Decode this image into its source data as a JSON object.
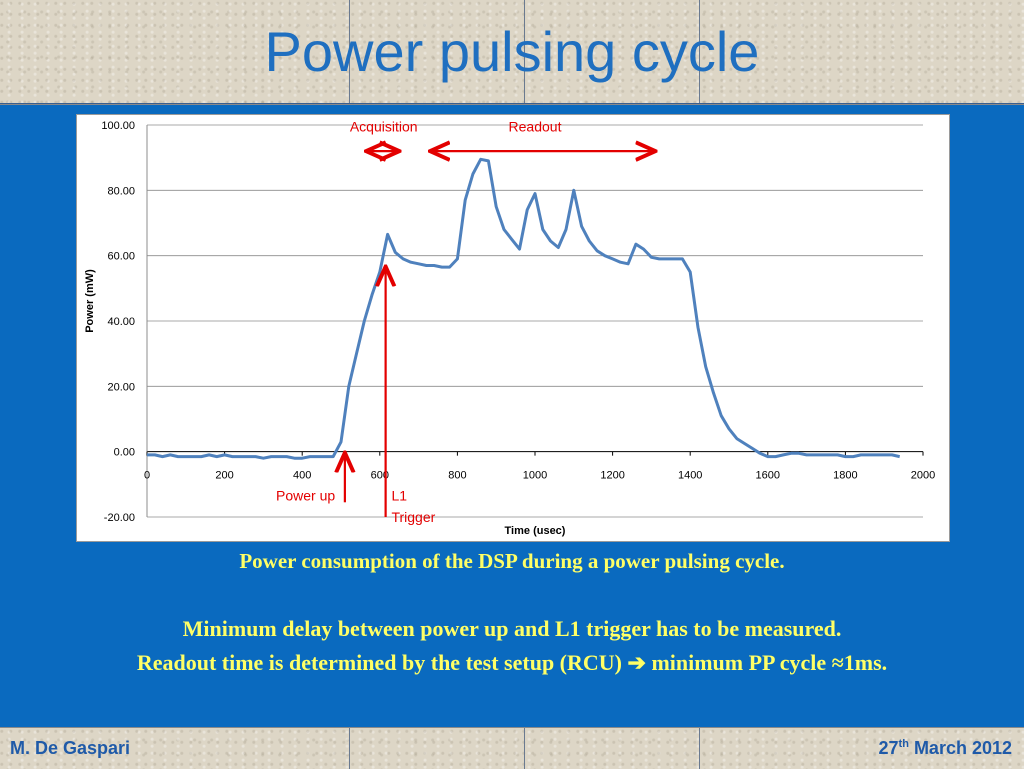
{
  "slide": {
    "title": "Power pulsing cycle",
    "author": "M. De Gaspari",
    "date_day": "27",
    "date_suffix": "th",
    "date_rest": "March 2012"
  },
  "captions": {
    "line1": "Power consumption of the DSP during a power pulsing cycle.",
    "line2": "Minimum delay between power up and L1 trigger has to be measured.",
    "line3_a": "Readout time is determined by the test setup (RCU)",
    "line3_arrow": "➔",
    "line3_b": "minimum PP cycle ≈1ms."
  },
  "colors": {
    "series": "#4f81bd",
    "annotation": "#e30000",
    "caption": "#ffff66",
    "title": "#1f6fc0"
  },
  "chart_data": {
    "type": "line",
    "xlabel": "Time (usec)",
    "ylabel": "Power (mW)",
    "xlim": [
      0,
      2000
    ],
    "ylim": [
      -20,
      100
    ],
    "x_ticks": [
      "0",
      "200",
      "400",
      "600",
      "800",
      "1000",
      "1200",
      "1400",
      "1600",
      "1800",
      "2000"
    ],
    "y_ticks": [
      "100.00",
      "80.00",
      "60.00",
      "40.00",
      "20.00",
      "0.00",
      "-20.00"
    ],
    "grid": "horizontal",
    "series": [
      {
        "x": [
          0,
          20,
          40,
          60,
          80,
          100,
          120,
          140,
          160,
          180,
          200,
          220,
          240,
          260,
          280,
          300,
          320,
          340,
          360,
          380,
          400,
          420,
          440,
          460,
          480,
          500,
          520,
          540,
          560,
          580,
          600,
          620,
          640,
          660,
          680,
          700,
          720,
          740,
          760,
          780,
          800,
          820,
          840,
          860,
          880,
          900,
          920,
          940,
          960,
          980,
          1000,
          1020,
          1040,
          1060,
          1080,
          1100,
          1120,
          1140,
          1160,
          1180,
          1200,
          1220,
          1240,
          1260,
          1280,
          1300,
          1320,
          1340,
          1360,
          1380,
          1400,
          1420,
          1440,
          1460,
          1480,
          1500,
          1520,
          1540,
          1560,
          1580,
          1600,
          1620,
          1640,
          1660,
          1680,
          1700,
          1720,
          1740,
          1760,
          1780,
          1800,
          1820,
          1840,
          1860,
          1880,
          1900,
          1920,
          1940
        ],
        "y": [
          -1,
          -1,
          -1.5,
          -1,
          -1.5,
          -1.5,
          -1.5,
          -1.5,
          -1,
          -1.5,
          -1,
          -1.5,
          -1.5,
          -1.5,
          -1.5,
          -2,
          -1.5,
          -1.5,
          -1.5,
          -2,
          -2,
          -1.5,
          -1.5,
          -1.5,
          -1.5,
          3,
          20,
          30,
          40,
          48,
          55,
          66.5,
          61,
          59,
          58,
          57.5,
          57,
          57,
          56.5,
          56.5,
          59,
          77,
          85,
          89.5,
          89,
          75,
          68,
          65,
          62,
          74,
          79,
          68,
          64.5,
          62.5,
          68,
          80,
          69,
          64.5,
          61.5,
          60,
          59,
          58,
          57.5,
          63.5,
          62,
          59.5,
          59,
          59,
          59,
          59,
          55,
          38,
          26,
          18,
          11,
          7,
          4,
          2.5,
          1,
          -0.5,
          -1.5,
          -1.5,
          -1,
          -0.5,
          -0.5,
          -1,
          -1,
          -1,
          -1,
          -1,
          -1.5,
          -1.5,
          -1,
          -1,
          -1,
          -1,
          -1,
          -1.5
        ]
      }
    ],
    "annotations": {
      "acquisition_label": "Acquisition",
      "readout_label": "Readout",
      "power_up_label": "Power up",
      "l1_label_line1": "L1",
      "l1_label_line2": "Trigger"
    }
  }
}
